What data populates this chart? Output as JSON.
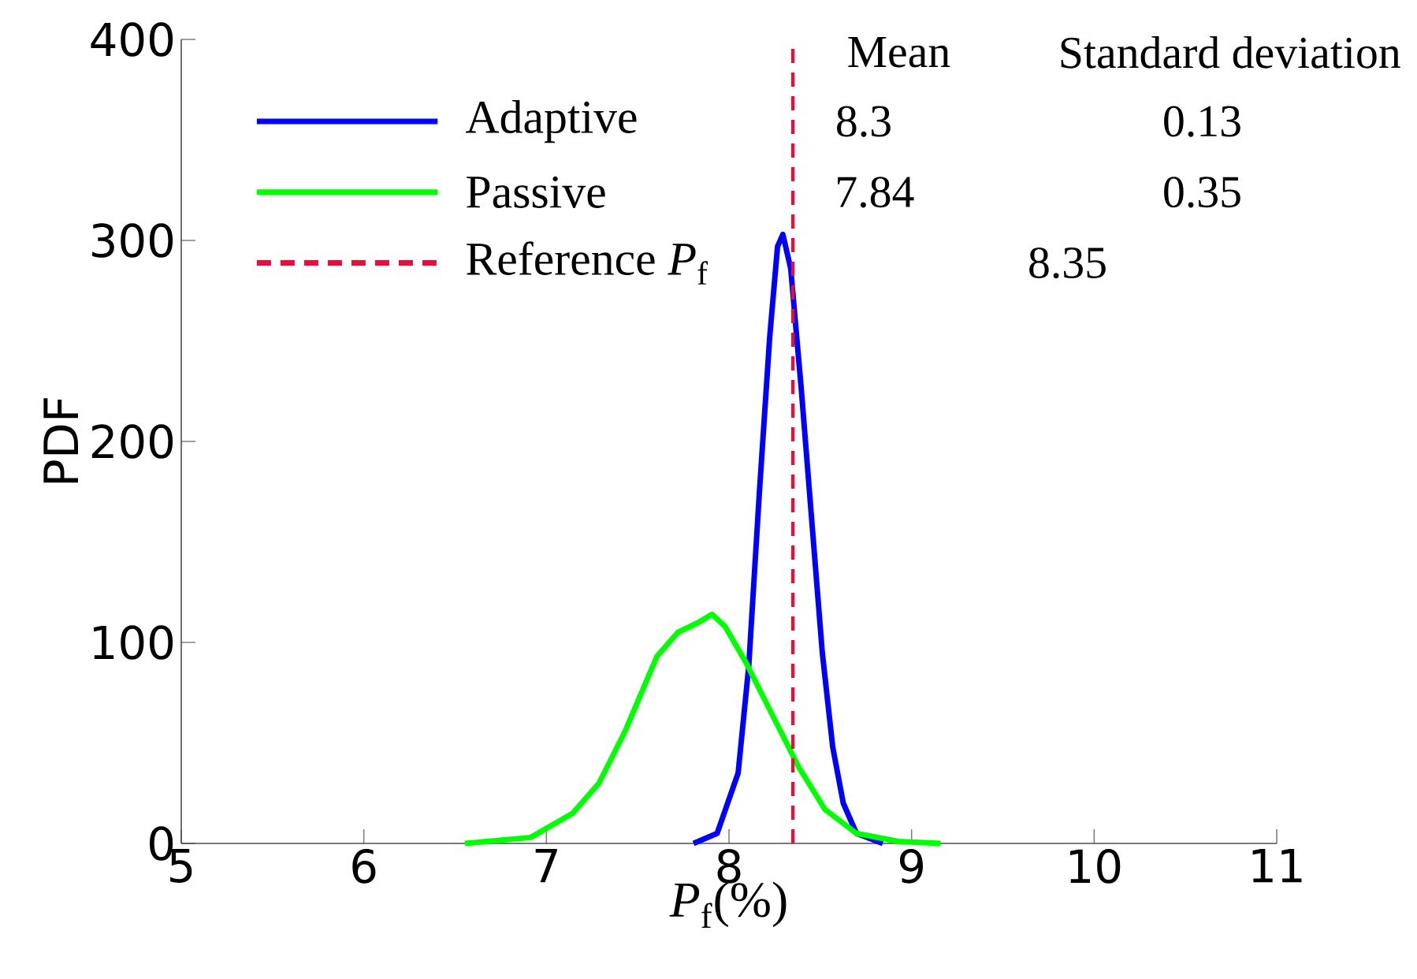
{
  "chart_data": {
    "type": "line",
    "xlabel": "*P*$_{f}$(%)",
    "ylabel": "PDF",
    "xlim": [
      5,
      11
    ],
    "ylim": [
      0,
      400
    ],
    "xticks": [
      5,
      6,
      7,
      8,
      9,
      10,
      11
    ],
    "yticks": [
      0,
      100,
      200,
      300,
      400
    ],
    "grid": false,
    "legend": "top left",
    "marker": "none",
    "line_style": "solid",
    "series": [
      {
        "name": "Adaptive",
        "color": "#0000ff",
        "x": [
          7.806,
          7.935,
          8.05,
          8.108,
          8.166,
          8.223,
          8.266,
          8.295,
          8.338,
          8.396,
          8.453,
          8.511,
          8.568,
          8.626,
          8.698,
          8.842
        ],
        "values": [
          0,
          5,
          35,
          88,
          174,
          252,
          297,
          303,
          286,
          226,
          161,
          95,
          48,
          20,
          5,
          0
        ]
      },
      {
        "name": "Passive",
        "color": "#00ff00",
        "x": [
          6.554,
          6.914,
          7.144,
          7.288,
          7.432,
          7.605,
          7.72,
          7.834,
          7.907,
          7.978,
          8.093,
          8.237,
          8.382,
          8.525,
          8.698,
          8.928,
          9.159
        ],
        "values": [
          0,
          3,
          15,
          30,
          56,
          93,
          105,
          110,
          114,
          108,
          90,
          64,
          38,
          17,
          5,
          1,
          0
        ]
      }
    ],
    "ref_lines": [
      {
        "axis": "x",
        "value": 8.35,
        "label": "Reference *P*$_{f}$",
        "color": "#dc143c",
        "line_style": "dashed"
      }
    ],
    "annotations": [
      "Mean",
      "Standard deviation",
      "8.3",
      "0.13",
      "7.84",
      "0.35",
      "8.35"
    ]
  }
}
